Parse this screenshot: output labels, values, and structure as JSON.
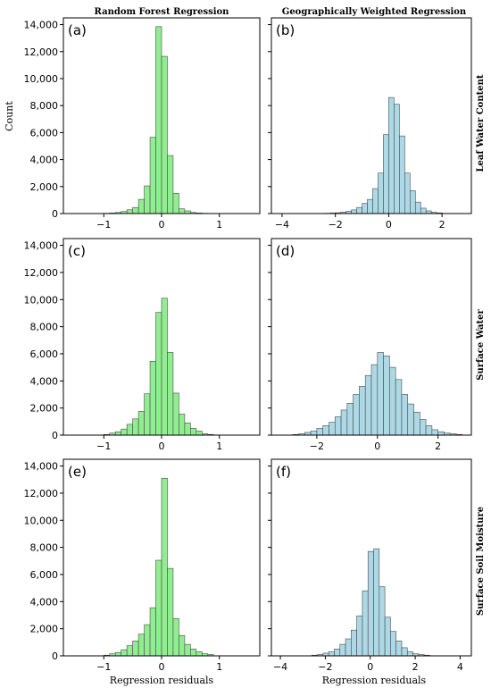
{
  "figure": {
    "column_titles": [
      "Random Forest Regression",
      "Geographically Weighted Regression"
    ],
    "row_titles": [
      "Leaf Water Content",
      "Surface Water",
      "Surface Soil Moisture"
    ],
    "ylabel": "Count",
    "xlabel": "Regression residuals",
    "colors": {
      "rf": "#90ee90",
      "gwr": "#add8e6",
      "edge": "#4a4a4a"
    }
  },
  "chart_data": [
    {
      "type": "bar",
      "panel_label": "(a)",
      "method": "Random Forest Regression",
      "variable": "Leaf Water Content",
      "xlim": [
        -1.7,
        1.7
      ],
      "ylim": [
        0,
        14500
      ],
      "xticks": [
        -1,
        0,
        1
      ],
      "yticks": [
        0,
        2000,
        4000,
        6000,
        8000,
        10000,
        12000,
        14000
      ],
      "ytick_labels": [
        "0",
        "2,000",
        "4,000",
        "6,000",
        "8,000",
        "10,000",
        "12,000",
        "14,000"
      ],
      "bin_start": -1.0,
      "bin_width": 0.1,
      "counts": [
        20,
        40,
        80,
        150,
        280,
        450,
        1050,
        2050,
        5650,
        13850,
        11650,
        4300,
        1500,
        350,
        200,
        80,
        40,
        20
      ]
    },
    {
      "type": "bar",
      "panel_label": "(b)",
      "method": "Geographically Weighted Regression",
      "variable": "Leaf Water Content",
      "xlim": [
        -4.4,
        3.1
      ],
      "ylim": [
        0,
        14500
      ],
      "xticks": [
        -4,
        -2,
        0,
        2
      ],
      "yticks": [
        0,
        2000,
        4000,
        6000,
        8000,
        10000,
        12000,
        14000
      ],
      "bin_start": -2.4,
      "bin_width": 0.2,
      "counts": [
        20,
        40,
        60,
        110,
        170,
        270,
        450,
        750,
        1050,
        1850,
        3000,
        5850,
        8600,
        8100,
        5750,
        3000,
        1700,
        850,
        400,
        200,
        100,
        50
      ]
    },
    {
      "type": "bar",
      "panel_label": "(c)",
      "method": "Random Forest Regression",
      "variable": "Surface Water",
      "xlim": [
        -1.7,
        1.7
      ],
      "ylim": [
        0,
        14500
      ],
      "xticks": [
        -1,
        0,
        1
      ],
      "yticks": [
        0,
        2000,
        4000,
        6000,
        8000,
        10000,
        12000,
        14000
      ],
      "ytick_labels": [
        "0",
        "2,000",
        "4,000",
        "6,000",
        "8,000",
        "10,000",
        "12,000",
        "14,000"
      ],
      "bin_start": -1.0,
      "bin_width": 0.1,
      "counts": [
        50,
        150,
        250,
        450,
        800,
        1200,
        1750,
        3050,
        5450,
        9050,
        10100,
        6100,
        3100,
        1550,
        900,
        500,
        300,
        100,
        50
      ]
    },
    {
      "type": "bar",
      "panel_label": "(d)",
      "method": "Geographically Weighted Regression",
      "variable": "Surface Water",
      "xlim": [
        -3.5,
        3.1
      ],
      "ylim": [
        0,
        14500
      ],
      "xticks": [
        -2,
        0,
        2
      ],
      "yticks": [
        0,
        2000,
        4000,
        6000,
        8000,
        10000,
        12000,
        14000
      ],
      "bin_start": -2.8,
      "bin_width": 0.2,
      "counts": [
        50,
        100,
        200,
        300,
        500,
        700,
        950,
        1350,
        1850,
        2350,
        3000,
        3600,
        4400,
        5200,
        6100,
        5850,
        5000,
        4100,
        3000,
        2300,
        1700,
        1150,
        700,
        400,
        250,
        150,
        100,
        50
      ]
    },
    {
      "type": "bar",
      "panel_label": "(e)",
      "method": "Random Forest Regression",
      "variable": "Surface Soil Moisture",
      "xlim": [
        -1.7,
        1.7
      ],
      "ylim": [
        0,
        14500
      ],
      "xticks": [
        -1,
        0,
        1
      ],
      "yticks": [
        0,
        2000,
        4000,
        6000,
        8000,
        10000,
        12000,
        14000
      ],
      "ytick_labels": [
        "0",
        "2,000",
        "4,000",
        "6,000",
        "8,000",
        "10,000",
        "12,000",
        "14,000"
      ],
      "bin_start": -1.0,
      "bin_width": 0.1,
      "counts": [
        50,
        150,
        250,
        450,
        750,
        1100,
        1600,
        2300,
        3550,
        7050,
        13100,
        6450,
        2750,
        1500,
        850,
        500,
        300,
        150,
        100
      ]
    },
    {
      "type": "bar",
      "panel_label": "(f)",
      "method": "Geographically Weighted Regression",
      "variable": "Surface Soil Moisture",
      "xlim": [
        -4.4,
        4.5
      ],
      "ylim": [
        0,
        14500
      ],
      "xticks": [
        -4,
        -2,
        0,
        2,
        4
      ],
      "yticks": [
        0,
        2000,
        4000,
        6000,
        8000,
        10000,
        12000,
        14000
      ],
      "bin_start": -2.6,
      "bin_width": 0.25,
      "counts": [
        50,
        100,
        200,
        300,
        500,
        850,
        1250,
        1900,
        2950,
        4800,
        7700,
        7900,
        5100,
        2850,
        1800,
        1100,
        600,
        300,
        150,
        100,
        50
      ]
    }
  ]
}
